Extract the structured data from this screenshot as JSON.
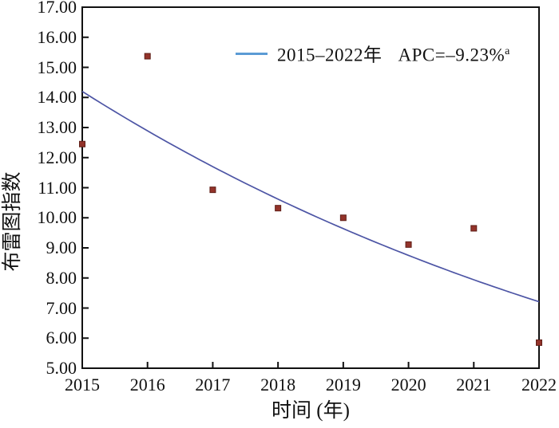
{
  "chart_data": {
    "type": "scatter",
    "title": "",
    "xlabel": "时间 (年)",
    "ylabel": "布雷图指数",
    "xlim": [
      2015,
      2022
    ],
    "ylim": [
      5,
      17
    ],
    "grid": false,
    "x": [
      2015,
      2016,
      2017,
      2018,
      2019,
      2020,
      2021,
      2022
    ],
    "xtick_labels": [
      "2015",
      "2016",
      "2017",
      "2018",
      "2019",
      "2020",
      "2021",
      "2022"
    ],
    "ytick_values": [
      17,
      16,
      15,
      14,
      13,
      12,
      11,
      10,
      9,
      8,
      7,
      6,
      5
    ],
    "ytick_labels": [
      "17.00",
      "16.00",
      "15.00",
      "14.00",
      "13.00",
      "12.00",
      "11.00",
      "10.00",
      "9.00",
      "8.00",
      "7.00",
      "6.00",
      "5.00"
    ],
    "series": [
      {
        "type": "scatter",
        "marker": "square",
        "color": "#93332a",
        "edge_color": "#5f1f18",
        "values": [
          12.45,
          15.37,
          10.93,
          10.32,
          10.0,
          9.11,
          9.65,
          5.85
        ]
      },
      {
        "type": "line",
        "interpolation": "exponential",
        "color": "#4d55a5",
        "legend_label": "2015–2022年 APC=–9.23%a",
        "values": [
          14.2,
          12.89,
          11.7,
          10.62,
          9.64,
          8.75,
          7.94,
          7.21
        ]
      }
    ],
    "legend": {
      "position": "upper-right-inside",
      "swatch_color": "#5b9bd5",
      "range_label": "2015–2022年",
      "apc_label": "APC=–9.23%",
      "superscript": "a"
    },
    "axis_color": "#111111"
  }
}
